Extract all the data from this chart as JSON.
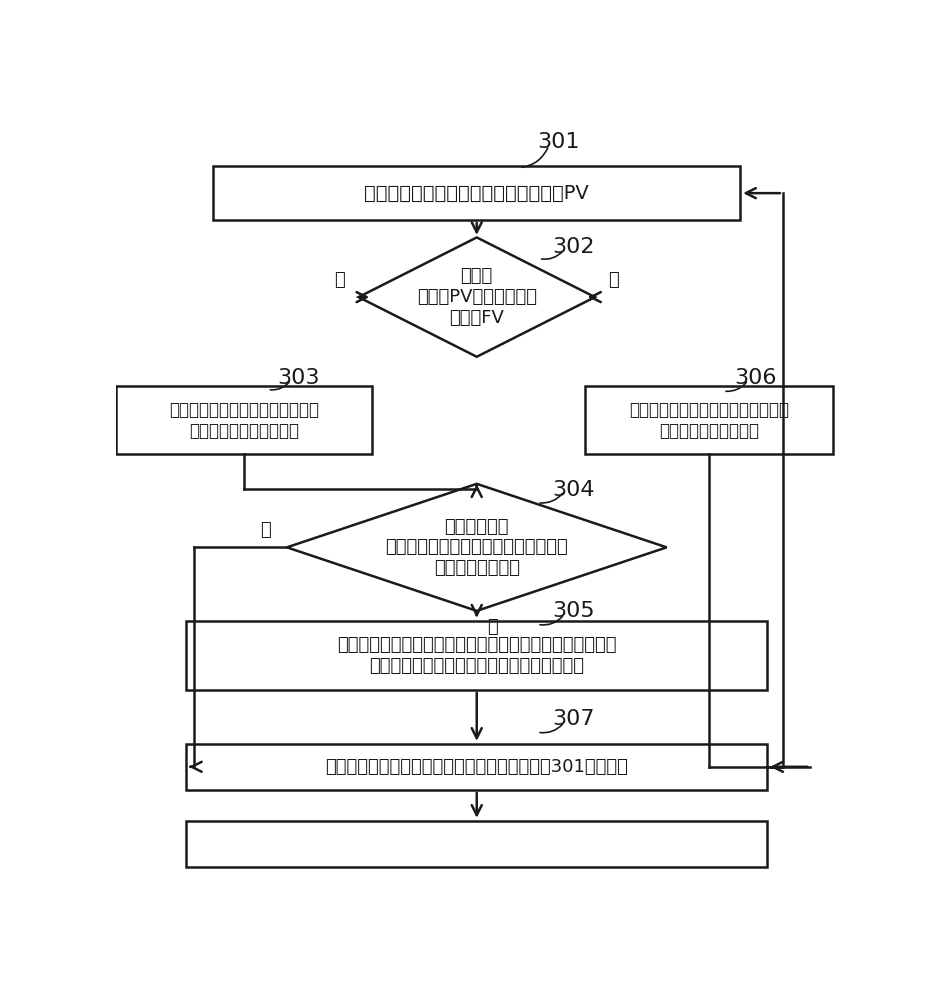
{
  "bg_color": "#ffffff",
  "line_color": "#1a1a1a",
  "box_color": "#ffffff",
  "text_color": "#1a1a1a",
  "font_size_large": 14,
  "font_size_med": 13,
  "font_size_small": 12,
  "step301_label": "获取初级电容逆变单元的输入端电压值PV",
  "step302_label": "输入端\n电压值PV是否大于预设\n电压值FV",
  "step303_label": "监测至少一个电平切换单元中的第\n一悬浮电容的实际电压值",
  "step304_label": "第一悬浮电容\n的实际电压值是否达到预设稳定电压值\n与偏置电压值之和",
  "step305_label": "对第一悬浮电容进行充电，使第一悬浮电容电压达到预设稳\n定电压值与偏置电压值之和，作为实际电压值",
  "step306_label": "控制所述第一悬浮电容的实际电压值\n保持为预设稳定电压值",
  "step307_label": "结束本次对第一悬浮电容电压的控制，返回步骤301继续执行",
  "label301": "301",
  "label302": "302",
  "label303": "303",
  "label304": "304",
  "label305": "305",
  "label306": "306",
  "label307": "307",
  "yes_label": "是",
  "no_label": "否"
}
